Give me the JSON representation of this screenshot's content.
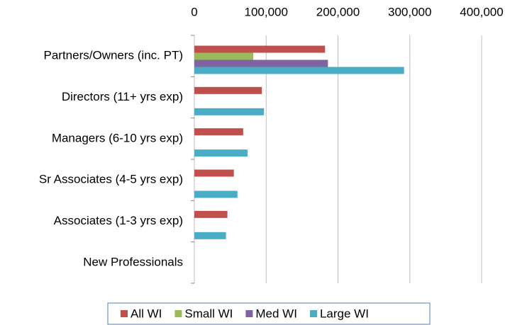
{
  "chart_data": {
    "type": "bar",
    "orientation": "horizontal",
    "categories": [
      "Partners/Owners (inc. PT)",
      "Directors (11+ yrs exp)",
      "Managers (6-10 yrs exp)",
      "Sr Associates (4-5 yrs exp)",
      "Associates (1-3 yrs exp)",
      "New Professionals"
    ],
    "series": [
      {
        "name": "All WI",
        "color": "#c0504d",
        "values": [
          182000,
          94000,
          68000,
          55000,
          46000,
          null
        ]
      },
      {
        "name": "Small WI",
        "color": "#9bbb59",
        "values": [
          82000,
          null,
          null,
          null,
          null,
          null
        ]
      },
      {
        "name": "Med WI",
        "color": "#8064a2",
        "values": [
          186000,
          null,
          null,
          null,
          null,
          null
        ]
      },
      {
        "name": "Large WI",
        "color": "#4bacc6",
        "values": [
          292000,
          97000,
          74000,
          60000,
          44000,
          null
        ]
      }
    ],
    "xlim": [
      0,
      400000
    ],
    "xticks": [
      0,
      {
        "value": 100000,
        "label": "100,000"
      },
      {
        "value": 200000,
        "label": "200,000"
      },
      {
        "value": 300000,
        "label": "300,000"
      },
      {
        "value": 400000,
        "label": "400,000"
      }
    ],
    "grid": true,
    "legend": "bottom"
  }
}
